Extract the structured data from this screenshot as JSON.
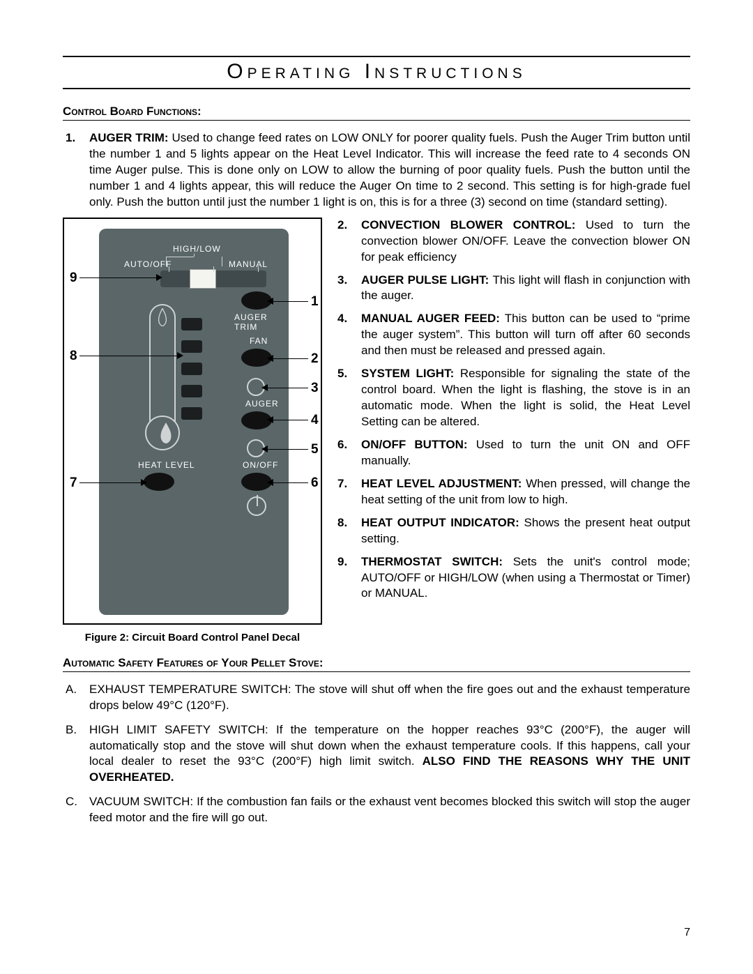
{
  "page": {
    "title": "Operating Instructions",
    "page_number": "7"
  },
  "section1_header": "Control Board Functions:",
  "item1": {
    "num": "1.",
    "label": "AUGER TRIM:",
    "text": "Used to change feed rates on LOW ONLY for poorer quality fuels. Push the Auger Trim button until the number 1 and 5 lights appear on the Heat Level Indicator.  This will increase the feed rate to 4 seconds ON time Auger pulse.  This is done only on LOW to allow the burning of poor quality fuels.  Push the button until the number 1 and 4 lights appear, this will reduce the Auger On time to 2 second.  This setting is for high-grade fuel only.  Push the button until just the number 1 light is on, this is for a three (3) second on time (standard setting)."
  },
  "items_right": [
    {
      "num": "2.",
      "label": "CONVECTION BLOWER CONTROL:",
      "text": "Used to turn the convection blower ON/OFF. Leave the convection blower ON for peak efficiency"
    },
    {
      "num": "3.",
      "label": "AUGER PULSE LIGHT:",
      "text": "This light will flash in conjunction with the auger."
    },
    {
      "num": "4.",
      "label": "MANUAL AUGER FEED:",
      "text": "This button can be used to “prime the auger system”. This button will turn off after 60 seconds and then must be released and pressed again."
    },
    {
      "num": "5.",
      "label": "SYSTEM LIGHT:",
      "text": "Responsible for signaling the state of the control board. When the light is flashing, the stove is in an automatic mode. When the light is solid, the Heat Level Setting can be altered."
    },
    {
      "num": "6.",
      "label": "ON/OFF BUTTON:",
      "text": "Used to turn the unit ON and OFF manually."
    },
    {
      "num": "7.",
      "label": "HEAT LEVEL ADJUSTMENT:",
      "text": "When pressed, will change the heat setting of the unit from low to high."
    },
    {
      "num": "8.",
      "label": "HEAT OUTPUT INDICATOR:",
      "text": "Shows the present heat output setting."
    },
    {
      "num": "9.",
      "label": "THERMOSTAT SWITCH:",
      "text": "Sets the unit's control mode; AUTO/OFF or HIGH/LOW (when using a Thermostat or Timer) or MANUAL."
    }
  ],
  "figure": {
    "caption": "Figure 2: Circuit Board Control Panel Decal",
    "labels": {
      "high_low": "HIGH/LOW",
      "auto_off": "AUTO/OFF",
      "manual": "MANUAL",
      "auger_trim": "AUGER TRIM",
      "fan": "FAN",
      "auger": "AUGER",
      "heat_level": "HEAT LEVEL",
      "on_off": "ON/OFF"
    },
    "callouts": [
      "1",
      "2",
      "3",
      "4",
      "5",
      "6",
      "7",
      "8",
      "9"
    ],
    "colors": {
      "panel_bg": "#5a6668",
      "button": "#111111",
      "ring": "#cfd3d3",
      "text": "#ffffff"
    }
  },
  "section2_header": "Automatic Safety Features of Your Pellet Stove:",
  "safety": [
    {
      "l": "A.",
      "pre": "EXHAUST TEMPERATURE SWITCH: The stove will shut off when the fire goes out and the exhaust temperature drops below 49°C (120°F).",
      "bold": ""
    },
    {
      "l": "B.",
      "pre": "HIGH LIMIT SAFETY SWITCH: If the temperature on the hopper reaches 93°C (200°F), the auger will automatically stop and the stove will shut down when the exhaust temperature cools.  If this happens, call your local dealer to reset the 93°C (200°F) high limit switch. ",
      "bold": "ALSO FIND THE REASONS WHY THE UNIT OVERHEATED."
    },
    {
      "l": "C.",
      "pre": "VACUUM SWITCH: If the combustion fan fails or the exhaust vent becomes blocked this switch will stop the auger feed motor and the fire will go out.",
      "bold": ""
    }
  ]
}
